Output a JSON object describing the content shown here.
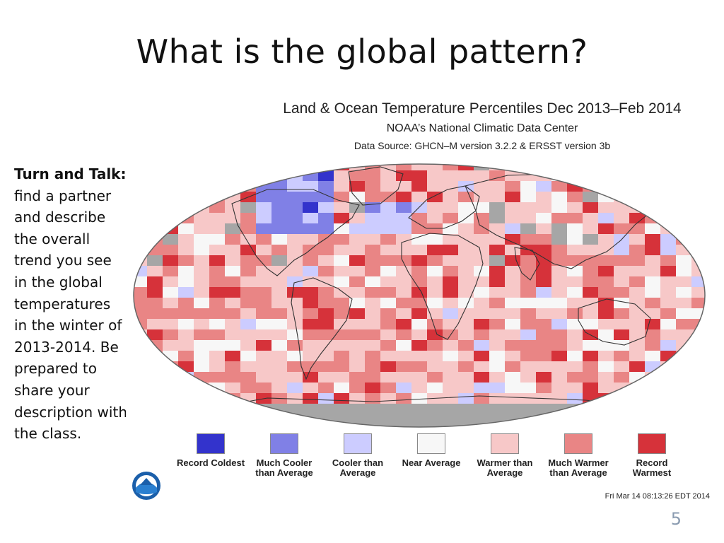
{
  "slide": {
    "title": "What is the global pattern?",
    "prompt_bold": "Turn and Talk:",
    "prompt_text": "find a partner and describe the overall trend you see in the global temperatures in the winter of 2013-2014. Be prepared to share your description with the class.",
    "page_number": "5"
  },
  "figure": {
    "title": "Land & Ocean Temperature Percentiles Dec 2013–Feb 2014",
    "subtitle": "NOAA’s National Climatic Data Center",
    "source": "Data Source: GHCN–M version 3.2.2 & ERSST version 3b",
    "timestamp": "Fri Mar 14 08:13:26 EDT 2014",
    "logo_icon": "noaa-logo-icon",
    "no_data_color": "#a6a6a6",
    "legend": [
      {
        "label": "Record Coldest",
        "color": "#3333cc"
      },
      {
        "label": "Much Cooler than Average",
        "color": "#8080e6"
      },
      {
        "label": "Cooler than Average",
        "color": "#ccccff"
      },
      {
        "label": "Near Average",
        "color": "#f7f7f7"
      },
      {
        "label": "Warmer than Average",
        "color": "#f7c8c8"
      },
      {
        "label": "Much Warmer than Average",
        "color": "#e98585"
      },
      {
        "label": "Record Warmest",
        "color": "#d6323a"
      }
    ]
  }
}
